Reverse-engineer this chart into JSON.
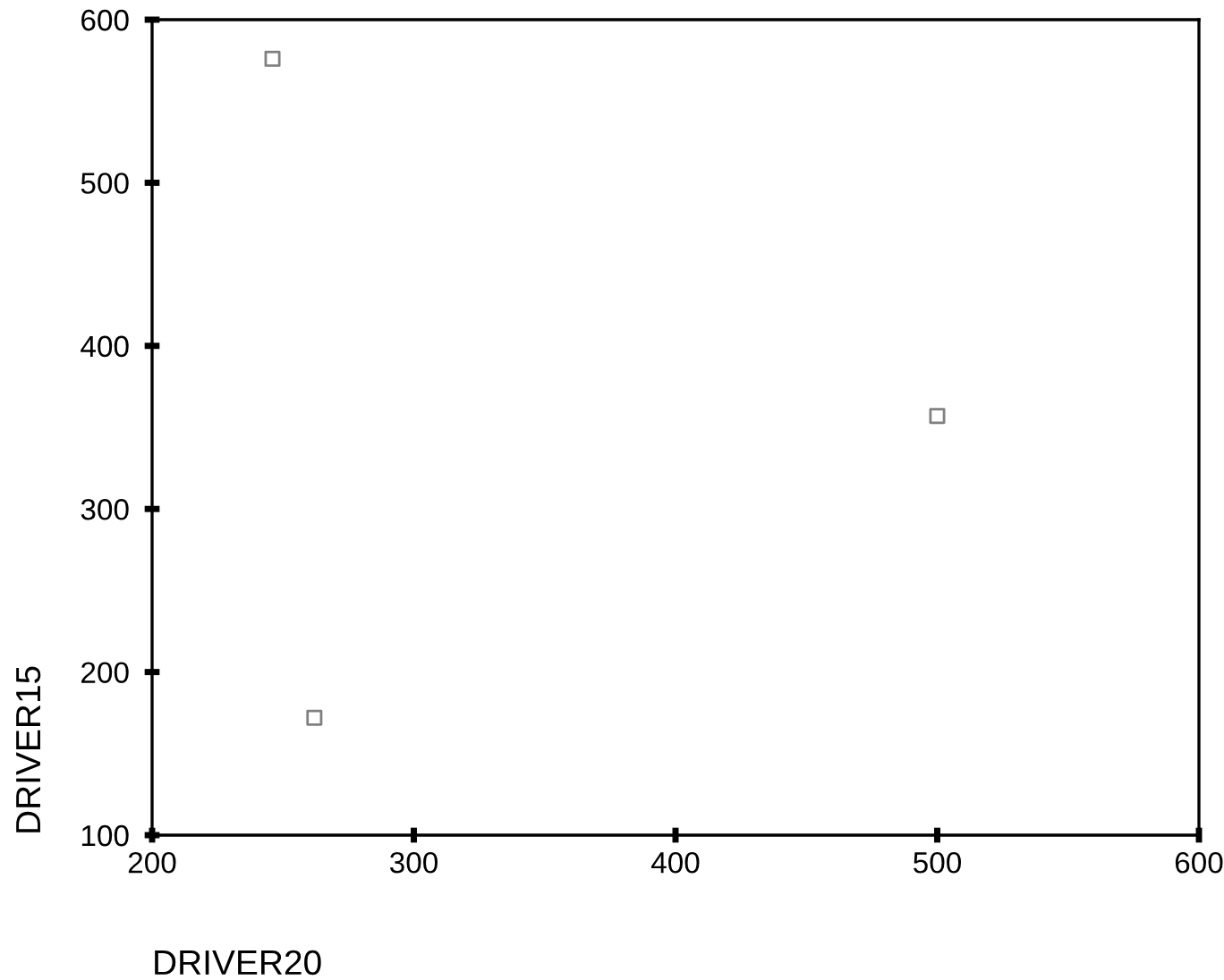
{
  "chart_data": {
    "type": "scatter",
    "xlabel": "DRIVER20",
    "ylabel": "DRIVER15",
    "x": [
      246,
      262,
      500
    ],
    "values": [
      576,
      172,
      357
    ],
    "color": "#808080",
    "marker": "square",
    "xlim": [
      200,
      600
    ],
    "ylim": [
      100,
      600
    ],
    "xticks": [
      200,
      300,
      400,
      500,
      600
    ],
    "yticks": [
      100,
      200,
      300,
      400,
      500,
      600
    ],
    "grid": false
  }
}
